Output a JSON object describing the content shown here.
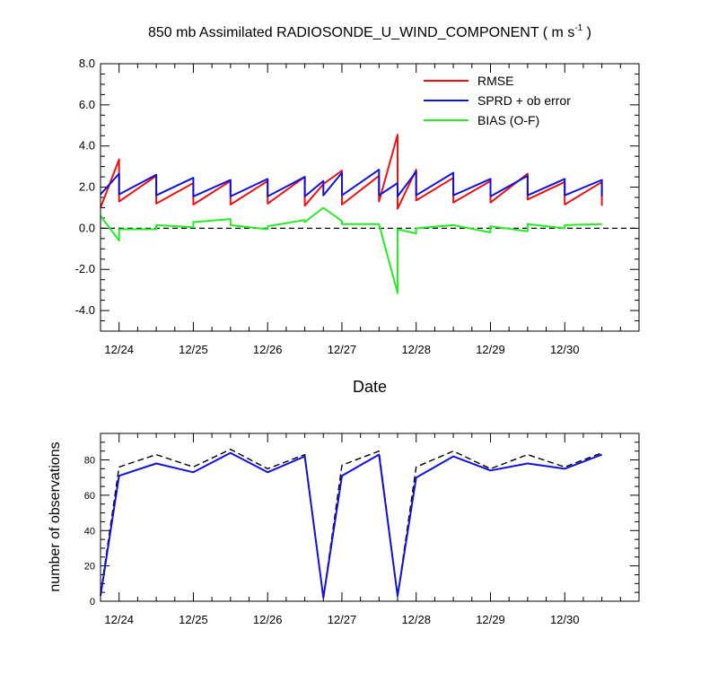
{
  "chart_data": [
    {
      "type": "line",
      "title": "850 mb Assimilated RADIOSONDE_U_WIND_COMPONENT ( m s",
      "title_exponent": "-1",
      "title_close": " )",
      "xlabel": "Date",
      "ylabel": "",
      "xlim": [
        -0.25,
        7.0
      ],
      "ylim": [
        -5.0,
        8.0
      ],
      "xtick_labels": [
        "12/24",
        "12/25",
        "12/26",
        "12/27",
        "12/28",
        "12/29",
        "12/30"
      ],
      "ytick_labels": [
        "8.0",
        "6.0",
        "4.0",
        "2.0",
        "0.0",
        "-2.0",
        "-4.0"
      ],
      "ytick_values": [
        8,
        6,
        4,
        2,
        0,
        -2,
        -4
      ],
      "zero_line": true,
      "legend_position": "top-right",
      "series": [
        {
          "name": "RMSE",
          "color": "#ee1111",
          "points": [
            [
              -0.25,
              1.0
            ],
            [
              0.0,
              3.35
            ],
            [
              0.0,
              1.3
            ],
            [
              0.5,
              2.55
            ],
            [
              0.5,
              1.2
            ],
            [
              1.0,
              2.2
            ],
            [
              1.0,
              1.15
            ],
            [
              1.5,
              2.3
            ],
            [
              1.5,
              1.15
            ],
            [
              2.0,
              2.3
            ],
            [
              2.0,
              1.2
            ],
            [
              2.5,
              2.5
            ],
            [
              2.5,
              1.1
            ],
            [
              2.75,
              2.15
            ],
            [
              3.0,
              2.8
            ],
            [
              3.0,
              1.15
            ],
            [
              3.5,
              2.55
            ],
            [
              3.5,
              1.3
            ],
            [
              3.75,
              4.55
            ],
            [
              3.75,
              0.95
            ],
            [
              4.0,
              2.85
            ],
            [
              4.0,
              1.35
            ],
            [
              4.5,
              2.45
            ],
            [
              4.5,
              1.25
            ],
            [
              5.0,
              2.3
            ],
            [
              5.0,
              1.25
            ],
            [
              5.5,
              2.65
            ],
            [
              5.5,
              1.4
            ],
            [
              6.0,
              2.25
            ],
            [
              6.0,
              1.15
            ],
            [
              6.5,
              2.25
            ],
            [
              6.5,
              1.1
            ]
          ]
        },
        {
          "name": "SPRD + ob error",
          "color": "#1111dd",
          "points": [
            [
              -0.25,
              1.65
            ],
            [
              0.0,
              2.65
            ],
            [
              0.0,
              1.65
            ],
            [
              0.5,
              2.6
            ],
            [
              0.5,
              1.6
            ],
            [
              1.0,
              2.45
            ],
            [
              1.0,
              1.55
            ],
            [
              1.5,
              2.35
            ],
            [
              1.5,
              1.55
            ],
            [
              2.0,
              2.4
            ],
            [
              2.0,
              1.55
            ],
            [
              2.5,
              2.5
            ],
            [
              2.5,
              1.55
            ],
            [
              2.75,
              2.3
            ],
            [
              2.75,
              1.6
            ],
            [
              3.0,
              2.7
            ],
            [
              3.0,
              1.6
            ],
            [
              3.5,
              2.85
            ],
            [
              3.5,
              1.6
            ],
            [
              3.75,
              2.2
            ],
            [
              3.75,
              1.55
            ],
            [
              4.0,
              2.75
            ],
            [
              4.0,
              1.6
            ],
            [
              4.5,
              2.7
            ],
            [
              4.5,
              1.6
            ],
            [
              5.0,
              2.4
            ],
            [
              5.0,
              1.55
            ],
            [
              5.5,
              2.55
            ],
            [
              5.5,
              1.6
            ],
            [
              6.0,
              2.4
            ],
            [
              6.0,
              1.6
            ],
            [
              6.5,
              2.35
            ],
            [
              6.5,
              1.55
            ]
          ]
        },
        {
          "name": "BIAS (O-F)",
          "color": "#22ee22",
          "points": [
            [
              -0.25,
              0.6
            ],
            [
              0.0,
              -0.6
            ],
            [
              0.0,
              -0.05
            ],
            [
              0.5,
              -0.05
            ],
            [
              0.5,
              0.15
            ],
            [
              1.0,
              0.05
            ],
            [
              1.0,
              0.3
            ],
            [
              1.5,
              0.45
            ],
            [
              1.5,
              0.15
            ],
            [
              2.0,
              -0.05
            ],
            [
              2.0,
              0.1
            ],
            [
              2.5,
              0.4
            ],
            [
              2.5,
              0.3
            ],
            [
              2.75,
              1.0
            ],
            [
              3.0,
              0.35
            ],
            [
              3.0,
              0.2
            ],
            [
              3.5,
              0.2
            ],
            [
              3.75,
              -3.15
            ],
            [
              3.75,
              -0.05
            ],
            [
              4.0,
              -0.25
            ],
            [
              4.0,
              0.0
            ],
            [
              4.5,
              0.15
            ],
            [
              5.0,
              -0.2
            ],
            [
              5.0,
              0.1
            ],
            [
              5.5,
              -0.15
            ],
            [
              5.5,
              0.2
            ],
            [
              6.0,
              0.0
            ],
            [
              6.0,
              0.15
            ],
            [
              6.5,
              0.2
            ],
            [
              6.5,
              0.2
            ]
          ]
        }
      ]
    },
    {
      "type": "line",
      "title": "",
      "xlabel": "",
      "ylabel": "number of observations",
      "xlim": [
        -0.25,
        7.0
      ],
      "ylim": [
        0,
        95
      ],
      "xtick_labels": [
        "12/24",
        "12/25",
        "12/26",
        "12/27",
        "12/28",
        "12/29",
        "12/30"
      ],
      "ytick_labels": [
        "80",
        "60",
        "40",
        "20",
        "0"
      ],
      "ytick_values": [
        80,
        60,
        40,
        20,
        0
      ],
      "series": [
        {
          "name": "",
          "color": "#000000",
          "dashed": true,
          "points": [
            [
              -0.25,
              4
            ],
            [
              0.0,
              76
            ],
            [
              0.5,
              83
            ],
            [
              1.0,
              76
            ],
            [
              1.5,
              86
            ],
            [
              2.0,
              75
            ],
            [
              2.5,
              83
            ],
            [
              2.75,
              2
            ],
            [
              3.0,
              77
            ],
            [
              3.5,
              85
            ],
            [
              3.75,
              3
            ],
            [
              4.0,
              76
            ],
            [
              4.5,
              85
            ],
            [
              5.0,
              75
            ],
            [
              5.5,
              83
            ],
            [
              6.0,
              76
            ],
            [
              6.5,
              84
            ]
          ]
        },
        {
          "name": "",
          "color": "#1111dd",
          "dashed": false,
          "points": [
            [
              -0.25,
              3
            ],
            [
              0.0,
              71
            ],
            [
              0.5,
              78
            ],
            [
              1.0,
              73
            ],
            [
              1.5,
              84
            ],
            [
              2.0,
              73
            ],
            [
              2.5,
              82
            ],
            [
              2.75,
              2
            ],
            [
              3.0,
              71
            ],
            [
              3.5,
              83
            ],
            [
              3.75,
              3
            ],
            [
              4.0,
              70
            ],
            [
              4.5,
              82
            ],
            [
              5.0,
              74
            ],
            [
              5.5,
              78
            ],
            [
              6.0,
              75
            ],
            [
              6.5,
              83
            ]
          ]
        }
      ]
    }
  ]
}
